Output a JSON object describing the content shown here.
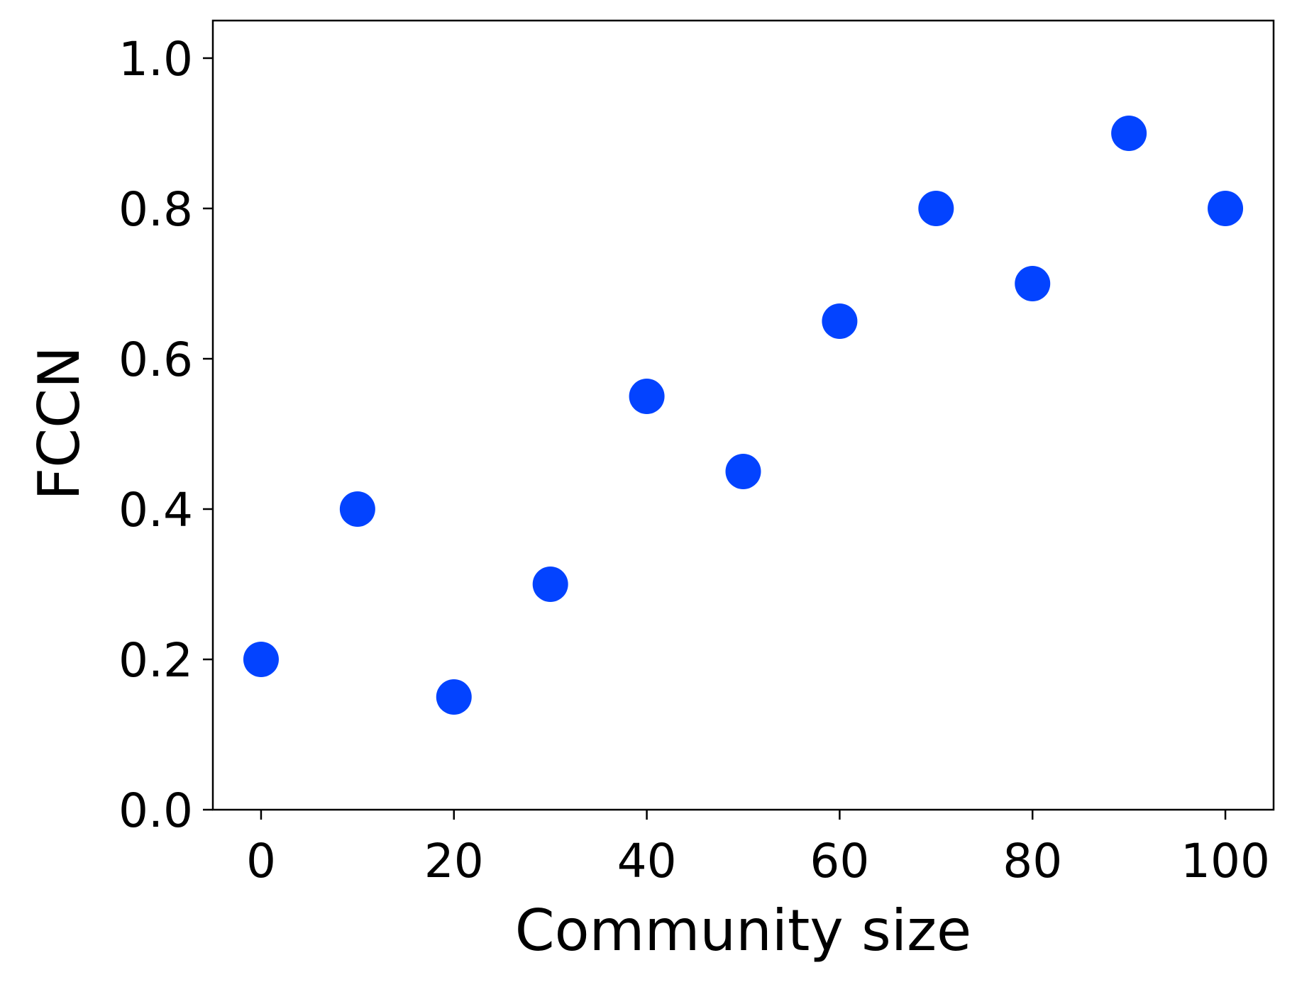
{
  "chart_data": {
    "type": "scatter",
    "title": "",
    "xlabel": "Community size",
    "ylabel": "FCCN",
    "xlim": [
      -5,
      105
    ],
    "ylim": [
      0.0,
      1.05
    ],
    "xticks": [
      0,
      20,
      40,
      60,
      80,
      100
    ],
    "xtick_labels": [
      "0",
      "20",
      "40",
      "60",
      "80",
      "100"
    ],
    "yticks": [
      0.0,
      0.2,
      0.4,
      0.6,
      0.8,
      1.0
    ],
    "ytick_labels": [
      "0.0",
      "0.2",
      "0.4",
      "0.6",
      "0.8",
      "1.0"
    ],
    "grid": false,
    "series": [
      {
        "color": "#0343ff",
        "x": [
          0,
          10,
          20,
          30,
          40,
          50,
          60,
          70,
          80,
          90,
          100
        ],
        "y": [
          0.2,
          0.4,
          0.15,
          0.3,
          0.55,
          0.45,
          0.65,
          0.8,
          0.7,
          0.9,
          0.8
        ]
      }
    ]
  }
}
